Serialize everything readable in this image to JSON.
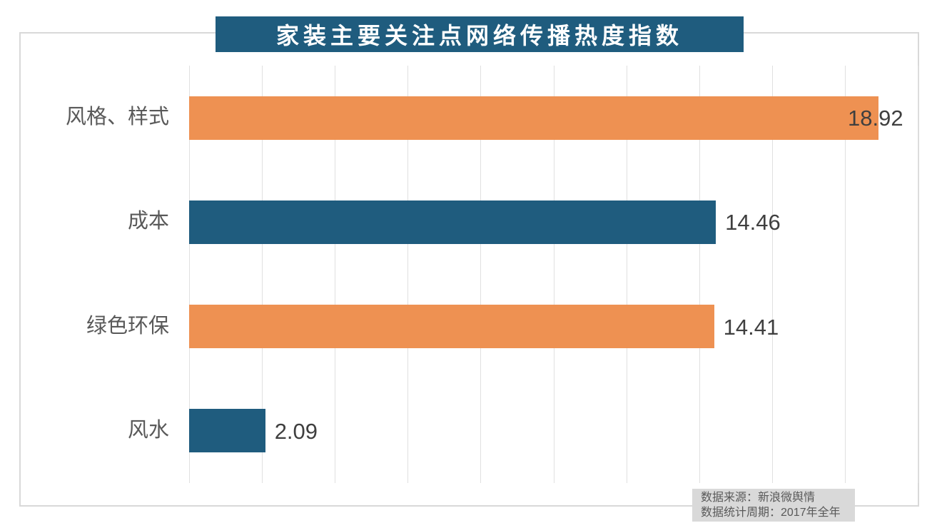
{
  "title": "家装主要关注点网络传播热度指数",
  "source_box": {
    "line1": "数据来源：新浪微舆情",
    "line2": "数据统计周期：2017年全年"
  },
  "colors": {
    "banner_background": "#1f5c7e",
    "bar_teal": "#1f5c7e",
    "bar_orange": "#ee9152",
    "gridline": "#e0e0e0",
    "panel_border": "#d9d9d9",
    "source_background": "#d9d9d9",
    "category_text": "#595959",
    "value_text": "#3f3f3f",
    "title_text": "#ffffff"
  },
  "chart_data": {
    "type": "bar",
    "orientation": "horizontal",
    "title": "家装主要关注点网络传播热度指数",
    "categories": [
      "风格、样式",
      "成本",
      "绿色环保",
      "风水"
    ],
    "values": [
      18.92,
      14.46,
      14.41,
      2.09
    ],
    "value_labels": [
      "18.92",
      "14.46",
      "14.41",
      "2.09"
    ],
    "bar_colors": [
      "#ee9152",
      "#1f5c7e",
      "#ee9152",
      "#1f5c7e"
    ],
    "xlim": [
      0,
      20
    ],
    "gridline_step": 2,
    "grid": true,
    "legend": "none",
    "xlabel": "",
    "ylabel": ""
  }
}
